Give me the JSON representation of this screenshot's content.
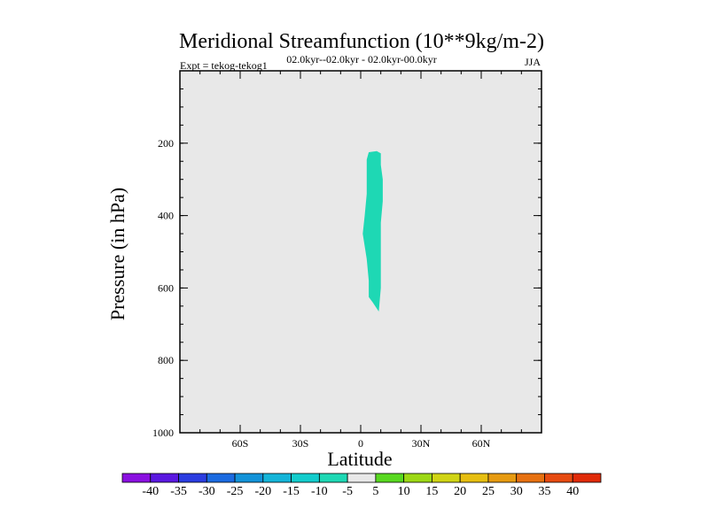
{
  "chart_data": {
    "type": "contour",
    "title": "Meridional Streamfunction (10**9kg/m-2)",
    "subtitle": "02.0kyr--02.0kyr - 02.0kyr-00.0kyr",
    "left_label": "Expt = tekog-tekog1",
    "right_label": "JJA",
    "xlabel": "Latitude",
    "ylabel": "Pressure (in hPa)",
    "xlim": [
      -90,
      90
    ],
    "ylim": [
      0,
      1000
    ],
    "y_inverted": true,
    "x_ticks": [
      {
        "value": -60,
        "label": "60S"
      },
      {
        "value": -30,
        "label": "30S"
      },
      {
        "value": 0,
        "label": "0"
      },
      {
        "value": 30,
        "label": "30N"
      },
      {
        "value": 60,
        "label": "60N"
      }
    ],
    "y_ticks": [
      {
        "value": 200,
        "label": "200"
      },
      {
        "value": 400,
        "label": "400"
      },
      {
        "value": 600,
        "label": "600"
      },
      {
        "value": 800,
        "label": "800"
      },
      {
        "value": 1000,
        "label": "1000"
      }
    ],
    "background_color": "#e8e8e8",
    "regions": [
      {
        "name": "negative-cell",
        "level_range": [
          -10,
          -5
        ],
        "color": "#1ed8b4",
        "outline": [
          [
            4,
            225
          ],
          [
            8,
            222
          ],
          [
            10,
            228
          ],
          [
            10,
            260
          ],
          [
            11,
            300
          ],
          [
            11,
            360
          ],
          [
            10,
            420
          ],
          [
            10,
            480
          ],
          [
            10,
            540
          ],
          [
            10,
            600
          ],
          [
            9,
            665
          ],
          [
            6,
            640
          ],
          [
            4,
            625
          ],
          [
            4,
            580
          ],
          [
            3,
            520
          ],
          [
            1,
            450
          ],
          [
            2,
            400
          ],
          [
            3,
            340
          ],
          [
            3,
            280
          ],
          [
            3,
            245
          ]
        ]
      }
    ],
    "colorbar": {
      "labels": [
        "-40",
        "-35",
        "-30",
        "-25",
        "-20",
        "-15",
        "-10",
        "-5",
        "5",
        "10",
        "15",
        "20",
        "25",
        "30",
        "35",
        "40"
      ],
      "colors": [
        "#8a10e0",
        "#5a18e0",
        "#2a3ce0",
        "#1a6ae0",
        "#1292d8",
        "#14b4d8",
        "#12cccc",
        "#1ed8b4",
        "#e8e8e8",
        "#58d820",
        "#9cd814",
        "#d0d414",
        "#e6be10",
        "#e69a10",
        "#e67010",
        "#e64a10",
        "#e02a08"
      ]
    }
  }
}
